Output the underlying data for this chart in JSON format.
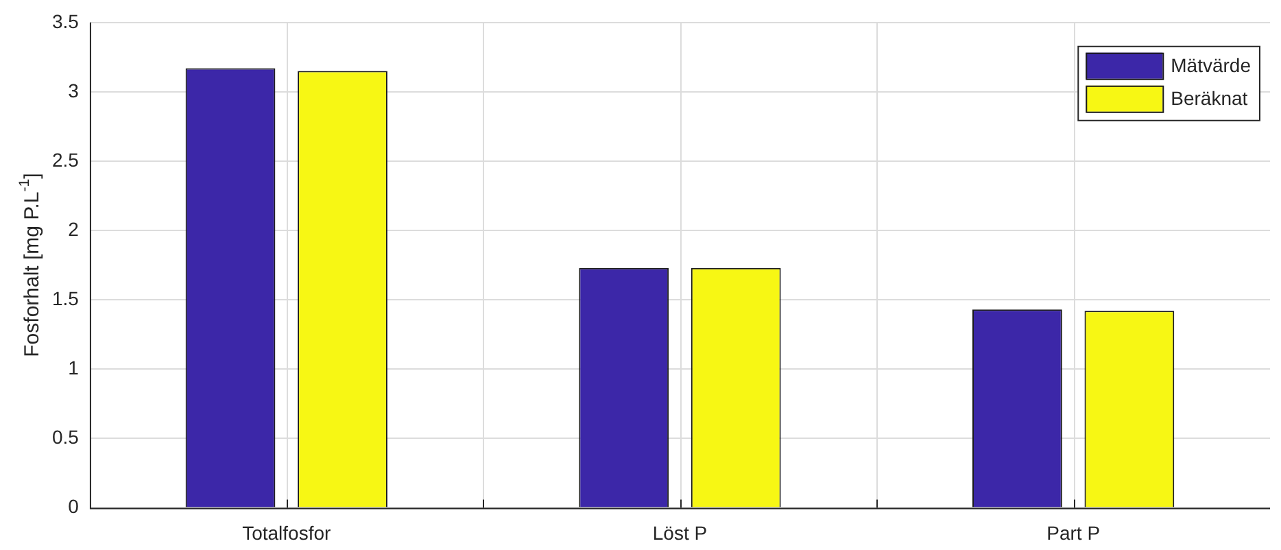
{
  "chart_data": {
    "type": "bar",
    "ylabel": "Fosforhalt [mg P.L$^{-1}$]",
    "categories": [
      "Totalfosfor",
      "Löst P",
      "Part P"
    ],
    "series": [
      {
        "name": "Mätvärde",
        "color": "#3c27a8",
        "values": [
          3.17,
          1.73,
          1.43
        ]
      },
      {
        "name": "Beräknat",
        "color": "#f7f714",
        "values": [
          3.15,
          1.73,
          1.42
        ]
      }
    ],
    "ylim": [
      0,
      3.5
    ],
    "yticks": [
      0,
      0.5,
      1,
      1.5,
      2,
      2.5,
      3,
      3.5
    ],
    "grid": true,
    "legend": "top right"
  }
}
